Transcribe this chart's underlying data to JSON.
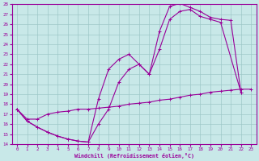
{
  "xlabel": "Windchill (Refroidissement éolien,°C)",
  "xlim": [
    -0.5,
    23.5
  ],
  "ylim": [
    14,
    28
  ],
  "xticks": [
    0,
    1,
    2,
    3,
    4,
    5,
    6,
    7,
    8,
    9,
    10,
    11,
    12,
    13,
    14,
    15,
    16,
    17,
    18,
    19,
    20,
    21,
    22,
    23
  ],
  "yticks": [
    14,
    15,
    16,
    17,
    18,
    19,
    20,
    21,
    22,
    23,
    24,
    25,
    26,
    27,
    28
  ],
  "bg_color": "#c8e8e8",
  "line_color": "#990099",
  "grid_color": "#9dc8c8",
  "curve1_x": [
    0,
    1,
    2,
    3,
    4,
    5,
    6,
    7,
    8,
    9,
    10,
    11,
    12,
    13,
    14,
    15,
    16,
    17,
    18,
    19,
    20,
    21,
    22
  ],
  "curve1_y": [
    17.5,
    16.3,
    15.7,
    15.2,
    14.8,
    14.5,
    14.3,
    14.2,
    18.5,
    21.5,
    22.5,
    23.0,
    22.0,
    21.0,
    25.3,
    27.8,
    28.1,
    27.7,
    27.3,
    26.7,
    26.5,
    26.4,
    19.2
  ],
  "curve2_x": [
    0,
    1,
    2,
    3,
    4,
    5,
    6,
    7,
    8,
    9,
    10,
    11,
    12,
    13,
    14,
    15,
    16,
    17,
    18,
    19,
    20,
    22
  ],
  "curve2_y": [
    17.5,
    16.3,
    15.7,
    15.2,
    14.8,
    14.5,
    14.3,
    14.2,
    16.0,
    17.5,
    20.2,
    21.5,
    22.0,
    21.0,
    23.5,
    26.5,
    27.3,
    27.5,
    26.8,
    26.5,
    26.2,
    19.2
  ],
  "curve3_x": [
    0,
    1,
    2,
    3,
    4,
    5,
    6,
    7,
    8,
    9,
    10,
    11,
    12,
    13,
    14,
    15,
    16,
    17,
    18,
    19,
    20,
    21,
    22,
    23
  ],
  "curve3_y": [
    17.5,
    16.5,
    16.5,
    17.0,
    17.2,
    17.3,
    17.5,
    17.5,
    17.6,
    17.7,
    17.8,
    18.0,
    18.1,
    18.2,
    18.4,
    18.5,
    18.7,
    18.9,
    19.0,
    19.2,
    19.3,
    19.4,
    19.5,
    19.5
  ]
}
